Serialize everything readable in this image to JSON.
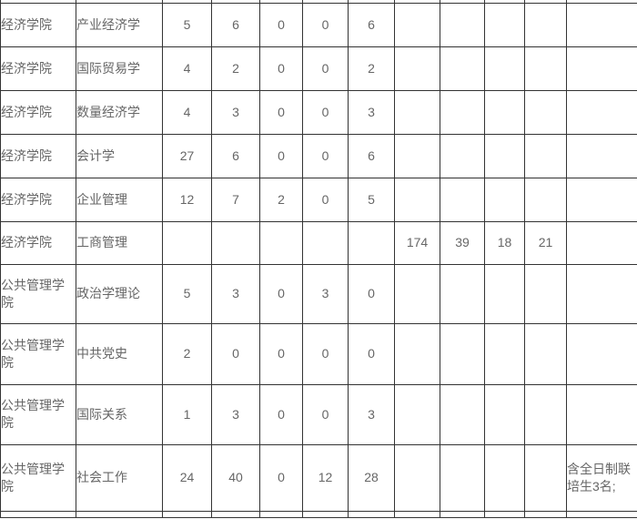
{
  "colors": {
    "border": "#333333",
    "text": "#666666",
    "background": "#ffffff"
  },
  "table": {
    "rows": [
      {
        "cells": [
          "经济学院",
          "产业经济学",
          "5",
          "6",
          "0",
          "0",
          "6",
          "",
          "",
          "",
          "",
          ""
        ]
      },
      {
        "cells": [
          "经济学院",
          "国际贸易学",
          "4",
          "2",
          "0",
          "0",
          "2",
          "",
          "",
          "",
          "",
          ""
        ]
      },
      {
        "cells": [
          "经济学院",
          "数量经济学",
          "4",
          "3",
          "0",
          "0",
          "3",
          "",
          "",
          "",
          "",
          ""
        ]
      },
      {
        "cells": [
          "经济学院",
          "会计学",
          "27",
          "6",
          "0",
          "0",
          "6",
          "",
          "",
          "",
          "",
          ""
        ]
      },
      {
        "cells": [
          "经济学院",
          "企业管理",
          "12",
          "7",
          "2",
          "0",
          "5",
          "",
          "",
          "",
          "",
          ""
        ]
      },
      {
        "cells": [
          "经济学院",
          "工商管理",
          "",
          "",
          "",
          "",
          "",
          "174",
          "39",
          "18",
          "21",
          ""
        ]
      },
      {
        "cells": [
          "公共管理学院",
          "政治学理论",
          "5",
          "3",
          "0",
          "3",
          "0",
          "",
          "",
          "",
          "",
          ""
        ]
      },
      {
        "cells": [
          "公共管理学院",
          "中共党史",
          "2",
          "0",
          "0",
          "0",
          "0",
          "",
          "",
          "",
          "",
          ""
        ]
      },
      {
        "cells": [
          "公共管理学院",
          "国际关系",
          "1",
          "3",
          "0",
          "0",
          "3",
          "",
          "",
          "",
          "",
          ""
        ]
      },
      {
        "cells": [
          "公共管理学院",
          "社会工作",
          "24",
          "40",
          "0",
          "12",
          "28",
          "",
          "",
          "",
          "",
          "含全日制联培生3名;"
        ]
      }
    ]
  }
}
